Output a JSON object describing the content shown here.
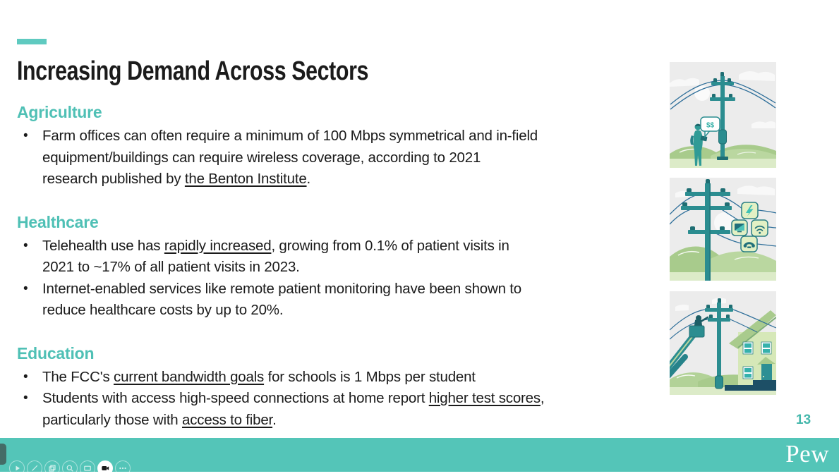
{
  "slide": {
    "title": "Increasing Demand Across Sectors",
    "page_number": "13",
    "sections": [
      {
        "heading": "Agriculture",
        "bullets": [
          [
            {
              "t": "Farm offices can often require a minimum of 100 Mbps symmetrical and in-field"
            },
            {
              "br": true
            },
            {
              "t": "equipment/buildings can require wireless coverage, according to 2021"
            },
            {
              "br": true
            },
            {
              "t": "research published by "
            },
            {
              "t": "the Benton Institute",
              "u": true
            },
            {
              "t": "."
            }
          ]
        ]
      },
      {
        "heading": "Healthcare",
        "bullets": [
          [
            {
              "t": "Telehealth use has "
            },
            {
              "t": "rapidly increased",
              "u": true
            },
            {
              "t": ", growing from 0.1% of patient visits in"
            },
            {
              "br": true
            },
            {
              "t": "2021 to ~17% of all patient visits in 2023."
            }
          ],
          [
            {
              "t": "Internet-enabled services like remote patient monitoring have been shown to"
            },
            {
              "br": true
            },
            {
              "t": "reduce healthcare costs by up to 20%."
            }
          ]
        ]
      },
      {
        "heading": "Education",
        "bullets": [
          [
            {
              "t": "The FCC's "
            },
            {
              "t": "current bandwidth goals",
              "u": true
            },
            {
              "t": " for schools is 1 Mbps per student"
            }
          ],
          [
            {
              "t": "Students with access high-speed connections at home report "
            },
            {
              "t": "higher test scores",
              "u": true
            },
            {
              "t": ","
            },
            {
              "br": true
            },
            {
              "t": "particularly those with "
            },
            {
              "t": "access to fiber",
              "u": true
            },
            {
              "t": "."
            }
          ]
        ]
      }
    ]
  },
  "illustrations": [
    {
      "name": "utility-pole-surveyor",
      "bubble_text": "$$"
    },
    {
      "name": "utility-pole-connected-services",
      "service_icons": [
        "electricity",
        "tv",
        "wifi",
        "phone"
      ]
    },
    {
      "name": "bucket-lift-home-installation"
    }
  ],
  "footer": {
    "brand": "Pew"
  },
  "toolbar": {
    "buttons": [
      {
        "name": "play"
      },
      {
        "name": "draw"
      },
      {
        "name": "slides"
      },
      {
        "name": "zoom"
      },
      {
        "name": "screen"
      },
      {
        "name": "camera",
        "active": true
      },
      {
        "name": "more"
      }
    ]
  },
  "colors": {
    "accent_teal": "#4fc0b5",
    "dash_teal": "#5fcac0",
    "footer_teal": "#54c5b8",
    "page_number_teal": "#45b8ac",
    "text": "#1b1b1b"
  }
}
